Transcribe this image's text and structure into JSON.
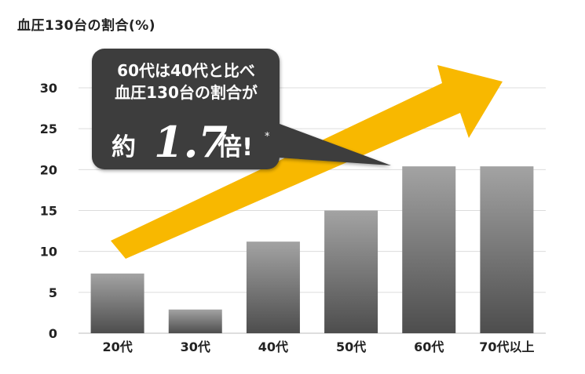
{
  "chart_data": {
    "type": "bar",
    "title": "血圧130台の割合(%)",
    "categories": [
      "20代",
      "30代",
      "40代",
      "50代",
      "60代",
      "70代以上"
    ],
    "values": [
      7.3,
      2.9,
      11.2,
      15.0,
      20.4,
      20.4
    ],
    "ylim": [
      0,
      30
    ],
    "yticks": [
      0,
      5,
      10,
      15,
      20,
      25,
      30
    ],
    "grid": true,
    "colors": {
      "bar_top": "#a3a3a3",
      "bar_bottom": "#4d4d4d",
      "arrow": "#f8b800",
      "callout_bg": "#3c3c3c",
      "callout_text": "#ffffff",
      "grid": "#dcdcdc"
    },
    "annotation": {
      "line1": "60代は40代と比べ",
      "line2": "血圧130台の割合が",
      "prefix": "約",
      "ratio": "1.7",
      "suffix": "倍!",
      "mark": "*"
    }
  }
}
